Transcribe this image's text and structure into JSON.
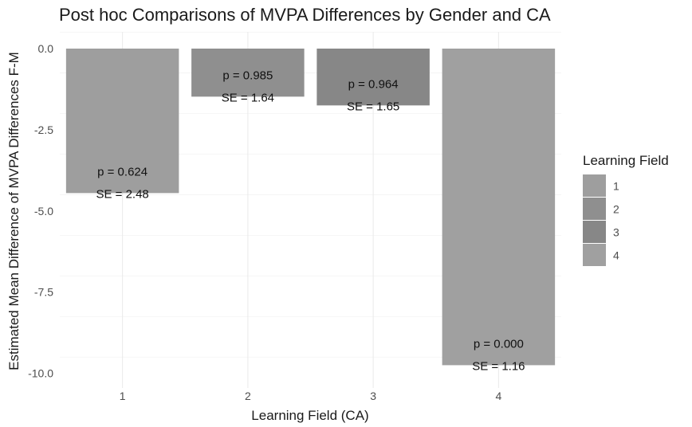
{
  "chart_data": {
    "type": "bar",
    "title": "Post hoc Comparisons of MVPA Differences by Gender and CA",
    "xlabel": "Learning Field (CA)",
    "ylabel": "Estimated Mean Difference of MVPA Differences F-M",
    "categories": [
      "1",
      "2",
      "3",
      "4"
    ],
    "values": [
      -4.45,
      -1.48,
      -1.75,
      -9.75
    ],
    "p_labels": [
      "p = 0.624",
      "p = 0.985",
      "p = 0.964",
      "p = 0.000"
    ],
    "se_labels": [
      "SE = 2.48",
      "SE = 1.64",
      "SE = 1.65",
      "SE = 1.16"
    ],
    "bar_colors": [
      "#9e9e9e",
      "#8f8f8f",
      "#878787",
      "#a0a0a0"
    ],
    "ylim": [
      -10.5,
      0.5
    ],
    "yticks": [
      0,
      -2.5,
      -5,
      -7.5,
      -10
    ],
    "ytick_labels": [
      "0.0",
      "-2.5",
      "-5.0",
      "-7.5",
      "-10.0"
    ],
    "grid": true,
    "legend": {
      "title": "Learning Field",
      "position": "right",
      "items": [
        "1",
        "2",
        "3",
        "4"
      ]
    }
  }
}
